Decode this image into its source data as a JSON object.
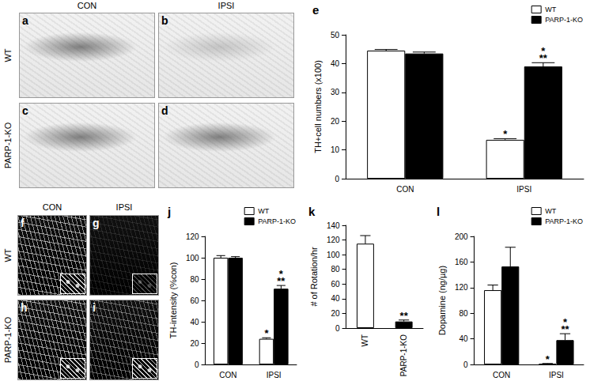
{
  "micrographs": [
    {
      "panels": [
        "a",
        "b",
        "c",
        "d"
      ],
      "columns": [
        "CON",
        "IPSI"
      ],
      "rows": [
        "WT",
        "PARP-1-KO"
      ]
    },
    {
      "panels": [
        "f",
        "g",
        "h",
        "i"
      ],
      "columns": [
        "CON",
        "IPSI"
      ],
      "rows": [
        "WT",
        "PARP-1-KO"
      ]
    }
  ],
  "chart_data": [
    {
      "type": "bar",
      "title": "e",
      "y_label": "TH+cell numbers (x100)",
      "categories": [
        "CON",
        "IPSI"
      ],
      "series": [
        {
          "name": "WT",
          "color": "#ffffff",
          "values": [
            44.5,
            13.5
          ],
          "errors": [
            0.4,
            0.4
          ]
        },
        {
          "name": "PARP-1-KO",
          "color": "#000000",
          "values": [
            43.5,
            39
          ],
          "errors": [
            0.5,
            1.3
          ]
        }
      ],
      "annotations": [
        {
          "category": "IPSI",
          "series": "WT",
          "text": "*"
        },
        {
          "category": "IPSI",
          "series": "PARP-1-KO",
          "text": "*\n**"
        }
      ],
      "ylim": [
        0,
        50
      ],
      "yticks": [
        0,
        10,
        20,
        30,
        40,
        50
      ],
      "grid": false,
      "legend": "upper right"
    },
    {
      "type": "bar",
      "title": "j",
      "y_label": "TH-intensity (%con)",
      "categories": [
        "CON",
        "IPSI"
      ],
      "series": [
        {
          "name": "WT",
          "color": "#ffffff",
          "values": [
            100,
            24
          ],
          "errors": [
            2,
            1
          ]
        },
        {
          "name": "PARP-1-KO",
          "color": "#000000",
          "values": [
            100,
            71
          ],
          "errors": [
            1,
            3
          ]
        }
      ],
      "annotations": [
        {
          "category": "IPSI",
          "series": "WT",
          "text": "*"
        },
        {
          "category": "IPSI",
          "series": "PARP-1-KO",
          "text": "*\n**"
        }
      ],
      "ylim": [
        0,
        120
      ],
      "yticks": [
        0,
        20,
        40,
        60,
        80,
        100,
        120
      ],
      "grid": false,
      "legend": "upper right"
    },
    {
      "type": "bar",
      "title": "k",
      "y_label": "# of Rotation/hr",
      "categories": [
        "WT",
        "PARP-1-KO"
      ],
      "values": [
        115,
        9
      ],
      "errors": [
        11,
        2
      ],
      "colors": [
        "#ffffff",
        "#000000"
      ],
      "annotations": [
        {
          "category": "PARP-1-KO",
          "text": "**"
        }
      ],
      "ylim": [
        0,
        140
      ],
      "yticks": [
        0,
        20,
        40,
        60,
        80,
        100,
        120,
        140
      ],
      "grid": false
    },
    {
      "type": "bar",
      "title": "l",
      "y_label": "Dopamine (ng/µg)",
      "categories": [
        "CON",
        "IPSI"
      ],
      "series": [
        {
          "name": "WT",
          "color": "#ffffff",
          "values": [
            116,
            1
          ],
          "errors": [
            8,
            0.5
          ]
        },
        {
          "name": "PARP-1-KO",
          "color": "#000000",
          "values": [
            153,
            38
          ],
          "errors": [
            30,
            10
          ]
        }
      ],
      "annotations": [
        {
          "category": "IPSI",
          "series": "WT",
          "text": "*"
        },
        {
          "category": "IPSI",
          "series": "PARP-1-KO",
          "text": "*\n**"
        }
      ],
      "ylim": [
        0,
        200
      ],
      "yticks": [
        0,
        40,
        80,
        120,
        160,
        200
      ],
      "grid": false,
      "legend": "upper right"
    }
  ]
}
